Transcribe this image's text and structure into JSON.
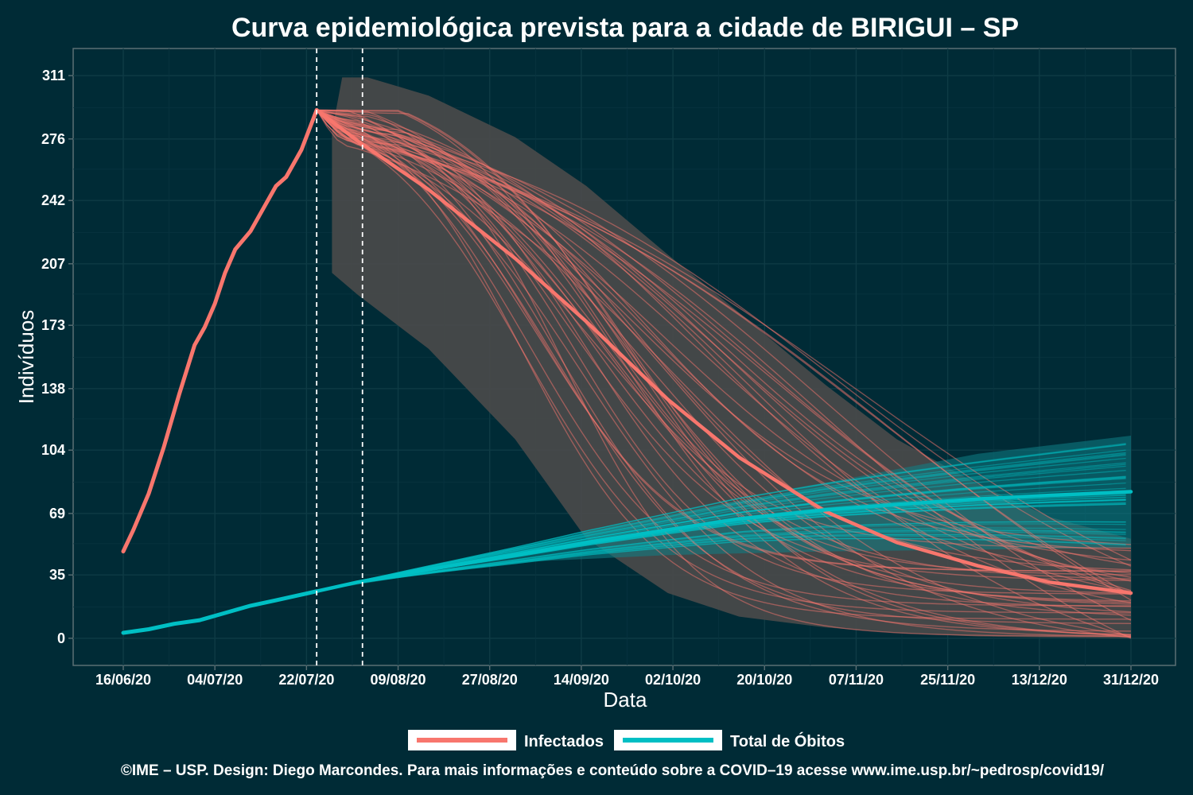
{
  "chart_data": {
    "type": "line",
    "title": "Curva epidemiológica prevista para a cidade de BIRIGUI – SP",
    "xlabel": "Data",
    "ylabel": "Indivíduos",
    "x_start": "2020-06-16",
    "x_end": "2020-12-31",
    "x_ticks": [
      "16/06/20",
      "04/07/20",
      "22/07/20",
      "09/08/20",
      "27/08/20",
      "14/09/20",
      "02/10/20",
      "20/10/20",
      "07/11/20",
      "25/11/20",
      "13/12/20",
      "31/12/20"
    ],
    "y_ticks": [
      "0",
      "35",
      "69",
      "104",
      "138",
      "173",
      "207",
      "242",
      "276",
      "311"
    ],
    "ylim": [
      -15,
      326
    ],
    "grid": true,
    "vlines": [
      "2020-07-24",
      "2020-08-02"
    ],
    "legend": {
      "position": "bottom",
      "entries": [
        {
          "label": "Infectados",
          "color": "#f8766d"
        },
        {
          "label": "Total de Óbitos",
          "color": "#00bfc4"
        }
      ]
    },
    "series": [
      {
        "name": "Infectados",
        "color": "#f8766d",
        "role": "observed",
        "points": [
          [
            "2020-06-16",
            48
          ],
          [
            "2020-06-18",
            60
          ],
          [
            "2020-06-21",
            80
          ],
          [
            "2020-06-24",
            106
          ],
          [
            "2020-06-27",
            135
          ],
          [
            "2020-06-30",
            162
          ],
          [
            "2020-07-02",
            172
          ],
          [
            "2020-07-04",
            185
          ],
          [
            "2020-07-06",
            202
          ],
          [
            "2020-07-08",
            215
          ],
          [
            "2020-07-11",
            225
          ],
          [
            "2020-07-14",
            240
          ],
          [
            "2020-07-16",
            250
          ],
          [
            "2020-07-18",
            255
          ],
          [
            "2020-07-21",
            270
          ],
          [
            "2020-07-24",
            292
          ]
        ]
      },
      {
        "name": "Infectados",
        "color": "#f8766d",
        "role": "forecast-median",
        "points": [
          [
            "2020-07-24",
            292
          ],
          [
            "2020-08-01",
            275
          ],
          [
            "2020-08-15",
            248
          ],
          [
            "2020-09-01",
            210
          ],
          [
            "2020-09-15",
            175
          ],
          [
            "2020-10-01",
            132
          ],
          [
            "2020-10-15",
            100
          ],
          [
            "2020-11-01",
            70
          ],
          [
            "2020-11-15",
            53
          ],
          [
            "2020-12-01",
            40
          ],
          [
            "2020-12-15",
            31
          ],
          [
            "2020-12-31",
            25
          ]
        ]
      },
      {
        "name": "Total de Óbitos",
        "color": "#00bfc4",
        "role": "observed",
        "points": [
          [
            "2020-06-16",
            3
          ],
          [
            "2020-06-21",
            5
          ],
          [
            "2020-06-26",
            8
          ],
          [
            "2020-07-01",
            10
          ],
          [
            "2020-07-06",
            14
          ],
          [
            "2020-07-11",
            18
          ],
          [
            "2020-07-16",
            21
          ],
          [
            "2020-07-24",
            26
          ]
        ]
      },
      {
        "name": "Total de Óbitos",
        "color": "#00bfc4",
        "role": "forecast-median",
        "points": [
          [
            "2020-07-24",
            26
          ],
          [
            "2020-08-01",
            31
          ],
          [
            "2020-08-15",
            38
          ],
          [
            "2020-09-01",
            46
          ],
          [
            "2020-09-15",
            53
          ],
          [
            "2020-10-01",
            60
          ],
          [
            "2020-10-15",
            66
          ],
          [
            "2020-11-01",
            71
          ],
          [
            "2020-11-15",
            74
          ],
          [
            "2020-12-01",
            77
          ],
          [
            "2020-12-15",
            79
          ],
          [
            "2020-12-31",
            81
          ]
        ]
      }
    ],
    "bands": [
      {
        "series": "Infectados",
        "color": "#4a4a4a",
        "upper": [
          [
            "2020-07-27",
            280
          ],
          [
            "2020-07-29",
            310
          ],
          [
            "2020-08-03",
            310
          ],
          [
            "2020-08-15",
            300
          ],
          [
            "2020-09-01",
            277
          ],
          [
            "2020-09-15",
            250
          ],
          [
            "2020-10-01",
            212
          ],
          [
            "2020-10-15",
            180
          ],
          [
            "2020-11-01",
            140
          ],
          [
            "2020-11-15",
            110
          ],
          [
            "2020-12-01",
            85
          ],
          [
            "2020-12-15",
            67
          ],
          [
            "2020-12-31",
            55
          ]
        ],
        "lower": [
          [
            "2020-07-27",
            202
          ],
          [
            "2020-08-01",
            190
          ],
          [
            "2020-08-15",
            160
          ],
          [
            "2020-09-01",
            110
          ],
          [
            "2020-09-15",
            55
          ],
          [
            "2020-10-01",
            25
          ],
          [
            "2020-10-15",
            12
          ],
          [
            "2020-11-01",
            6
          ],
          [
            "2020-11-15",
            3
          ],
          [
            "2020-12-01",
            1
          ],
          [
            "2020-12-31",
            0
          ]
        ]
      },
      {
        "series": "Total de Óbitos",
        "color": "#0f7f86",
        "upper": [
          [
            "2020-07-24",
            26
          ],
          [
            "2020-08-15",
            40
          ],
          [
            "2020-09-01",
            50
          ],
          [
            "2020-10-01",
            66
          ],
          [
            "2020-11-01",
            86
          ],
          [
            "2020-12-01",
            102
          ],
          [
            "2020-12-31",
            112
          ]
        ],
        "lower": [
          [
            "2020-07-24",
            26
          ],
          [
            "2020-08-15",
            36
          ],
          [
            "2020-09-01",
            42
          ],
          [
            "2020-10-01",
            46
          ],
          [
            "2020-11-01",
            48
          ],
          [
            "2020-12-01",
            49
          ],
          [
            "2020-12-31",
            50
          ]
        ]
      }
    ],
    "sample_paths": {
      "count": 45,
      "infected_peak_range": [
        270,
        292
      ],
      "infected_end_range": [
        0,
        55
      ],
      "deaths_end_range": [
        50,
        110
      ]
    }
  },
  "caption": "©IME – USP. Design: Diego Marcondes. Para mais informações e conteúdo sobre a COVID–19 acesse www.ime.usp.br/~pedrosp/covid19/"
}
